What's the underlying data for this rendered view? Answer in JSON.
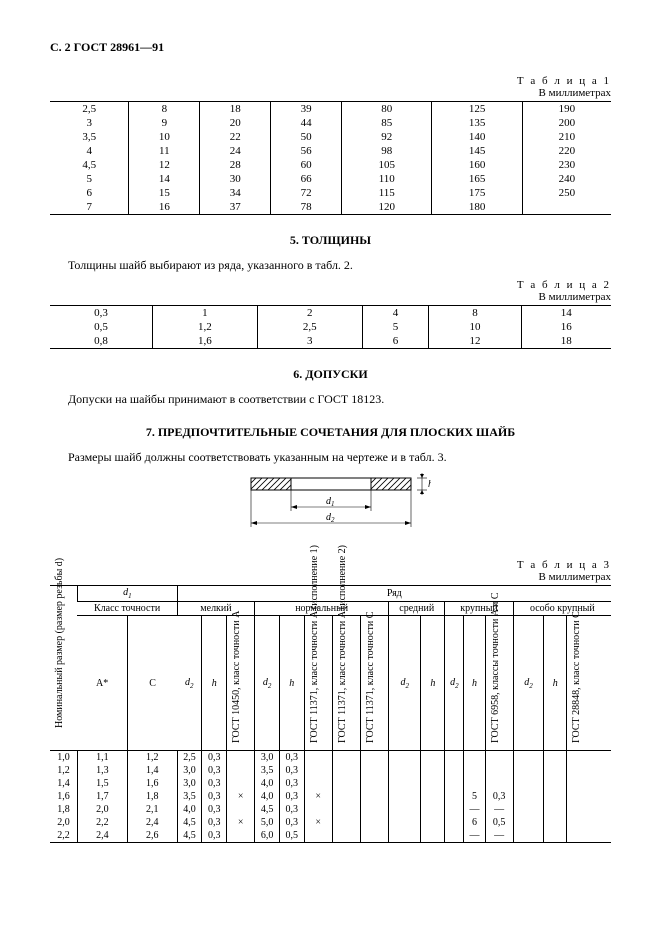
{
  "header": "С. 2 ГОСТ 28961—91",
  "table1": {
    "caption": "Т а б л и ц а   1",
    "units": "В миллиметрах",
    "rows": [
      [
        "2,5",
        "8",
        "18",
        "39",
        "80",
        "125",
        "190"
      ],
      [
        "3",
        "9",
        "20",
        "44",
        "85",
        "135",
        "200"
      ],
      [
        "3,5",
        "10",
        "22",
        "50",
        "92",
        "140",
        "210"
      ],
      [
        "4",
        "11",
        "24",
        "56",
        "98",
        "145",
        "220"
      ],
      [
        "4,5",
        "12",
        "28",
        "60",
        "105",
        "160",
        "230"
      ],
      [
        "5",
        "14",
        "30",
        "66",
        "110",
        "165",
        "240"
      ],
      [
        "6",
        "15",
        "34",
        "72",
        "115",
        "175",
        "250"
      ],
      [
        "7",
        "16",
        "37",
        "78",
        "120",
        "180",
        ""
      ]
    ]
  },
  "sec5": {
    "title": "5.  ТОЛЩИНЫ",
    "text": "Толщины шайб выбирают из ряда, указанного в табл. 2."
  },
  "table2": {
    "caption": "Т а б л и ц а   2",
    "units": "В миллиметрах",
    "rows": [
      [
        "0,3",
        "1",
        "2",
        "4",
        "8",
        "14"
      ],
      [
        "0,5",
        "1,2",
        "2,5",
        "5",
        "10",
        "16"
      ],
      [
        "0,8",
        "1,6",
        "3",
        "6",
        "12",
        "18"
      ]
    ]
  },
  "sec6": {
    "title": "6.  ДОПУСКИ",
    "text": "Допуски на шайбы принимают в соответствии с ГОСТ 18123."
  },
  "sec7": {
    "title": "7.  ПРЕДПОЧТИТЕЛЬНЫЕ СОЧЕТАНИЯ ДЛЯ ПЛОСКИХ ШАЙБ",
    "text": "Размеры шайб должны соответствовать указанным на чертеже и в табл. 3."
  },
  "diagram": {
    "d1": "d",
    "d1s": "1",
    "d2": "d",
    "d2s": "2",
    "h": "h"
  },
  "table3": {
    "caption": "Т а б л и ц а   3",
    "units": "В миллиметрах",
    "headers": {
      "nominal": "Номинальный размер (размер резьбы d)",
      "d1": "d",
      "d1s": "1",
      "class": "Класс точности",
      "a": "A*",
      "c": "C",
      "row": "Ряд",
      "fine": "мелкий",
      "normal": "нормальный",
      "medium": "средний",
      "coarse": "крупный",
      "xcoarse": "особо крупный",
      "d2": "d",
      "d2s": "2",
      "h": "h",
      "g1": "ГОСТ 10450, класс точности A",
      "g2": "ГОСТ 11371, класс точности A (исполнение 1)",
      "g3": "ГОСТ 11371, класс точности A (исполнение 2)",
      "g4": "ГОСТ 11371, класс точности C",
      "g5": "ГОСТ 6958, классы точности A и C",
      "g6": "ГОСТ 28848, класс точности C"
    },
    "data": [
      [
        "1,0",
        "1,1",
        "1,2",
        "2,5",
        "0,3",
        "",
        "3,0",
        "0,3",
        "",
        "",
        "",
        "",
        "",
        "",
        "",
        "",
        "",
        ""
      ],
      [
        "1,2",
        "1,3",
        "1,4",
        "3,0",
        "0,3",
        "",
        "3,5",
        "0,3",
        "",
        "",
        "",
        "",
        "",
        "",
        "",
        "",
        "",
        ""
      ],
      [
        "1,4",
        "1,5",
        "1,6",
        "3,0",
        "0,3",
        "",
        "4,0",
        "0,3",
        "",
        "",
        "",
        "",
        "",
        "",
        "",
        "",
        "",
        ""
      ],
      [
        "1,6",
        "1,7",
        "1,8",
        "3,5",
        "0,3",
        "×",
        "4,0",
        "0,3",
        "×",
        "",
        "",
        "",
        "",
        "",
        "5",
        "0,3",
        "",
        ""
      ],
      [
        "1,8",
        "2,0",
        "2,1",
        "4,0",
        "0,3",
        "",
        "4,5",
        "0,3",
        "",
        "",
        "",
        "",
        "",
        "",
        "—",
        "—",
        "",
        ""
      ],
      [
        "2,0",
        "2,2",
        "2,4",
        "4,5",
        "0,3",
        "×",
        "5,0",
        "0,3",
        "×",
        "",
        "",
        "",
        "",
        "",
        "6",
        "0,5",
        "",
        ""
      ],
      [
        "2,2",
        "2,4",
        "2,6",
        "4,5",
        "0,3",
        "",
        "6,0",
        "0,5",
        "",
        "",
        "",
        "",
        "",
        "",
        "—",
        "—",
        "",
        ""
      ]
    ]
  }
}
